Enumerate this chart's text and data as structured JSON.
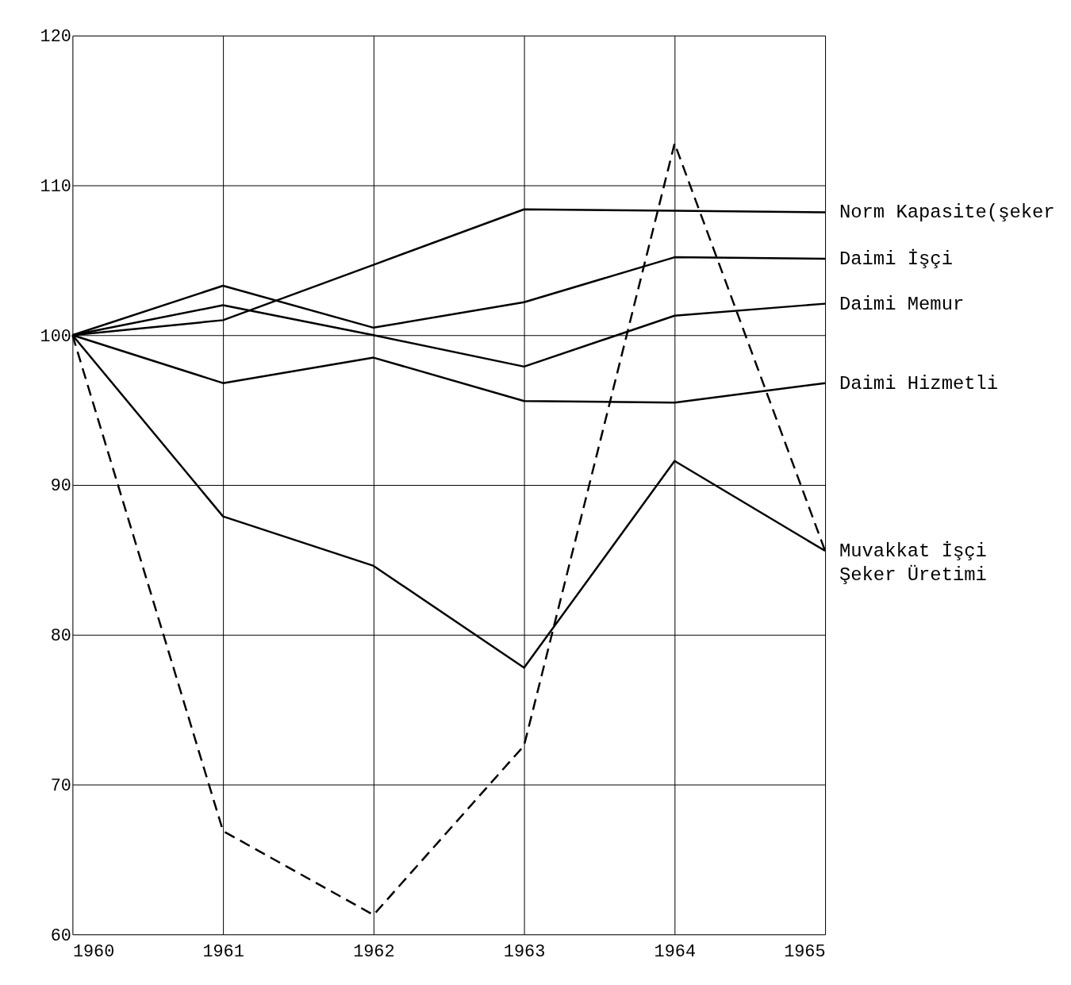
{
  "chart_data": {
    "type": "line",
    "x": [
      1960,
      1961,
      1962,
      1963,
      1964,
      1965
    ],
    "series": [
      {
        "name": "Norm Kapasite(şeker",
        "color": "#000000",
        "values": [
          100,
          101.0,
          104.7,
          108.4,
          108.3,
          108.2
        ]
      },
      {
        "name": "Daimi İşçi",
        "color": "#000000",
        "values": [
          100,
          103.3,
          100.5,
          102.2,
          105.2,
          105.1
        ]
      },
      {
        "name": "Daimi Memur",
        "color": "#000000",
        "values": [
          100,
          102.0,
          100.0,
          97.9,
          101.3,
          102.1
        ]
      },
      {
        "name": "Daimi Hizmetli",
        "color": "#000000",
        "values": [
          100,
          96.8,
          98.5,
          95.6,
          95.5,
          96.8
        ]
      },
      {
        "name": "Muvakkat İşçi",
        "color": "#000000",
        "values": [
          100,
          87.9,
          84.6,
          77.8,
          91.6,
          85.6
        ]
      },
      {
        "name": "Şeker Üretimi",
        "color": "#000000",
        "line_style": "dashed",
        "values": [
          100,
          66.9,
          61.3,
          72.6,
          112.8,
          85.6
        ]
      }
    ],
    "xlim": [
      1960,
      1965
    ],
    "xticks": [
      1960,
      1961,
      1962,
      1963,
      1964,
      1965
    ],
    "ylim": [
      60,
      120
    ],
    "yticks": [
      60,
      70,
      80,
      90,
      100,
      110,
      120
    ],
    "grid": true,
    "legend": false,
    "marker": "none",
    "line_style": "solid"
  }
}
